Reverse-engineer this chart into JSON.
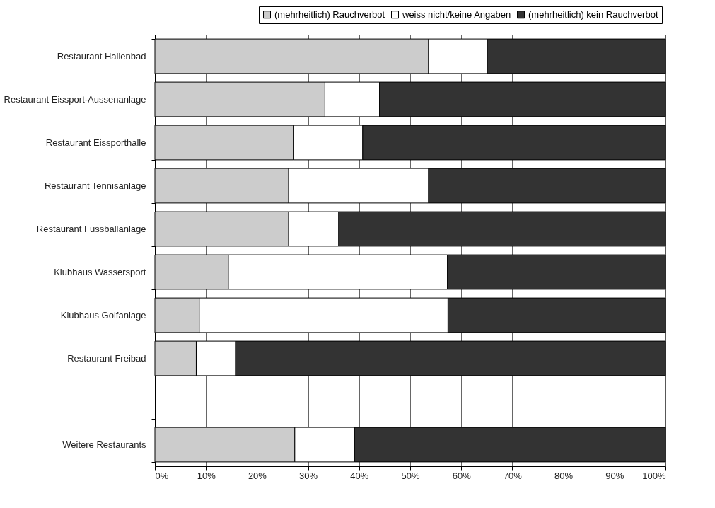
{
  "chart_data": {
    "type": "bar",
    "orientation": "horizontal",
    "stacked": true,
    "categories": [
      "Restaurant Hallenbad",
      "Restaurant Eissport-Aussenanlage",
      "Restaurant Eissporthalle",
      "Restaurant Tennisanlage",
      "Restaurant Fussballanlage",
      "Klubhaus Wassersport",
      "Klubhaus Golfanlage",
      "Restaurant Freibad",
      null,
      "Weitere Restaurants"
    ],
    "series": [
      {
        "name": "(mehrheitlich) Rauchverbot",
        "color": "#cccccc",
        "values": [
          53.6,
          33.3,
          27.2,
          26.2,
          26.2,
          14.4,
          8.7,
          8.1,
          null,
          27.4
        ]
      },
      {
        "name": "weiss nicht/keine Angaben",
        "color": "#ffffff",
        "values": [
          11.5,
          10.7,
          13.5,
          27.4,
          9.8,
          42.9,
          48.7,
          7.7,
          null,
          11.7
        ]
      },
      {
        "name": "(mehrheitlich) kein Rauchverbot",
        "color": "#333333",
        "values": [
          34.9,
          56.0,
          59.3,
          46.4,
          64.0,
          42.7,
          42.6,
          84.2,
          null,
          60.9
        ]
      }
    ],
    "xlim": [
      0,
      100
    ],
    "xticks": [
      {
        "value": 0,
        "label": "0%"
      },
      {
        "value": 10,
        "label": "10%"
      },
      {
        "value": 20,
        "label": "20%"
      },
      {
        "value": 30,
        "label": "30%"
      },
      {
        "value": 40,
        "label": "40%"
      },
      {
        "value": 50,
        "label": "50%"
      },
      {
        "value": 60,
        "label": "60%"
      },
      {
        "value": 70,
        "label": "70%"
      },
      {
        "value": 80,
        "label": "80%"
      },
      {
        "value": 90,
        "label": "90%"
      },
      {
        "value": 100,
        "label": "100%"
      }
    ],
    "grid": "x",
    "legend": "top right"
  }
}
